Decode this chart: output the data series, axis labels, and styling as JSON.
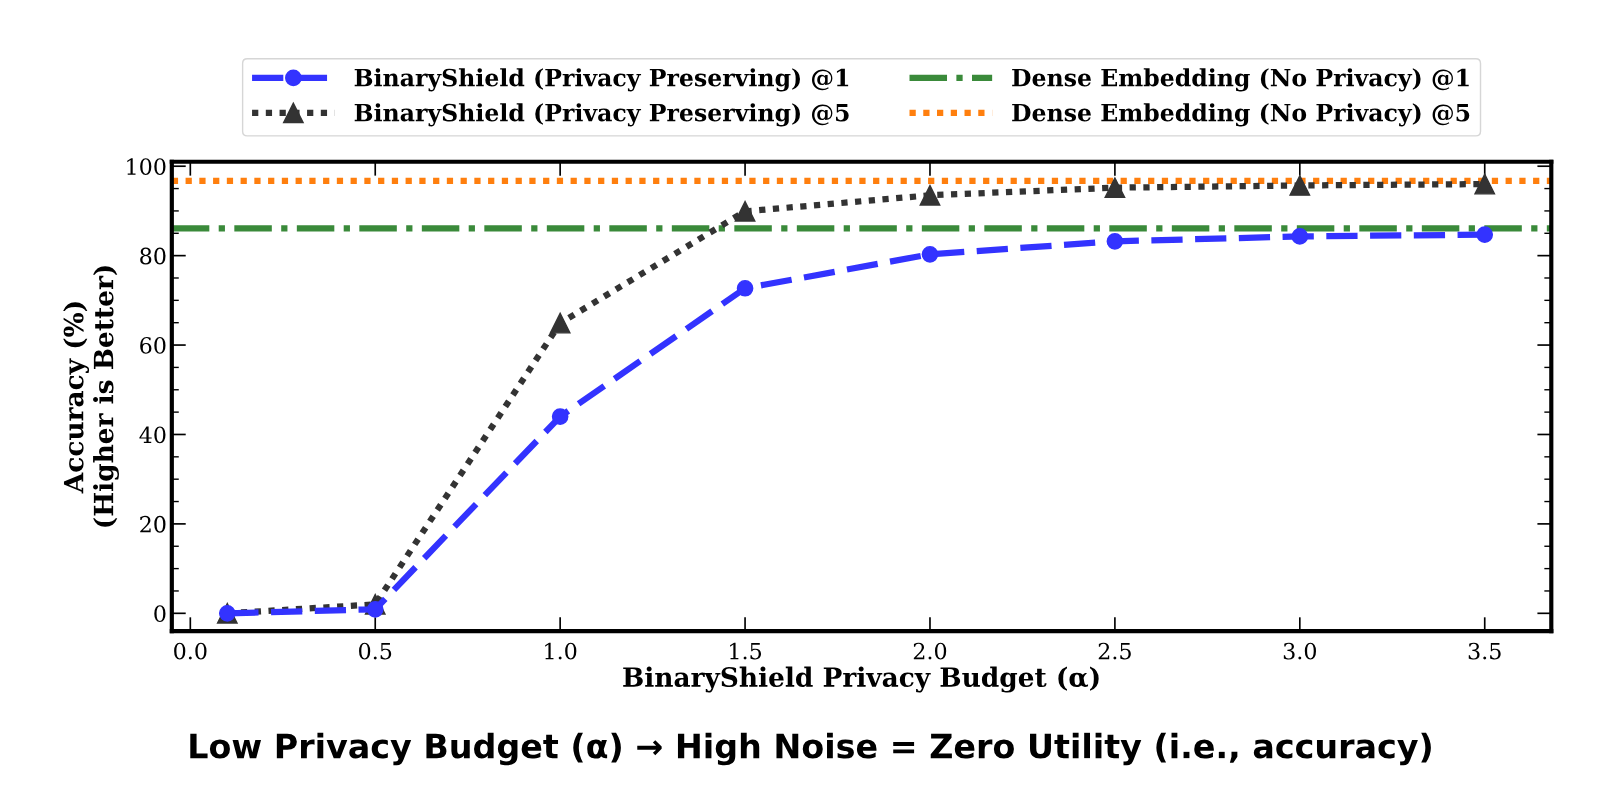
{
  "chart_data": {
    "type": "line",
    "x": [
      0.1,
      0.5,
      1.0,
      1.5,
      2.0,
      2.5,
      3.0,
      3.5
    ],
    "series": [
      {
        "name": "BinaryShield (Privacy Preserving) @1",
        "color": "#3333ff",
        "values": [
          0,
          0.9,
          44.0,
          72.7,
          80.3,
          83.2,
          84.3,
          84.7
        ],
        "marker": "circle",
        "line_style": "dashed"
      },
      {
        "name": "BinaryShield (Privacy Preserving) @5",
        "color": "#333333",
        "values": [
          0,
          2.0,
          64.9,
          89.9,
          93.5,
          95.2,
          95.7,
          96.0
        ],
        "marker": "triangle",
        "line_style": "dotted"
      }
    ],
    "ref_lines": [
      {
        "axis": "y",
        "value": 86.1,
        "label": "Dense Embedding (No Privacy) @1",
        "color": "#3a8a3a",
        "line_style": "dashdot"
      },
      {
        "axis": "y",
        "value": 96.7,
        "label": "Dense Embedding (No Privacy) @5",
        "color": "#ff7f0e",
        "line_style": "dotted"
      }
    ],
    "xlabel": "BinaryShield Privacy Budget (α)",
    "ylabel": "Accuracy (%)\n(Higher is Better)",
    "xlim": [
      -0.05,
      3.68
    ],
    "ylim": [
      -4,
      101
    ],
    "xticks": [
      {
        "value": 0.0,
        "label": "0.0"
      },
      0.5,
      {
        "value": 1.0,
        "label": "1.0"
      },
      1.5,
      {
        "value": 2.0,
        "label": "2.0"
      },
      2.5,
      {
        "value": 3.0,
        "label": "3.0"
      },
      3.5
    ],
    "yticks": [
      0,
      20,
      40,
      60,
      80,
      100
    ],
    "annotations": [
      "Low Privacy Budget (α) → High Noise = Zero Utility (i.e., accuracy)"
    ],
    "legend": "top",
    "grid": false
  }
}
